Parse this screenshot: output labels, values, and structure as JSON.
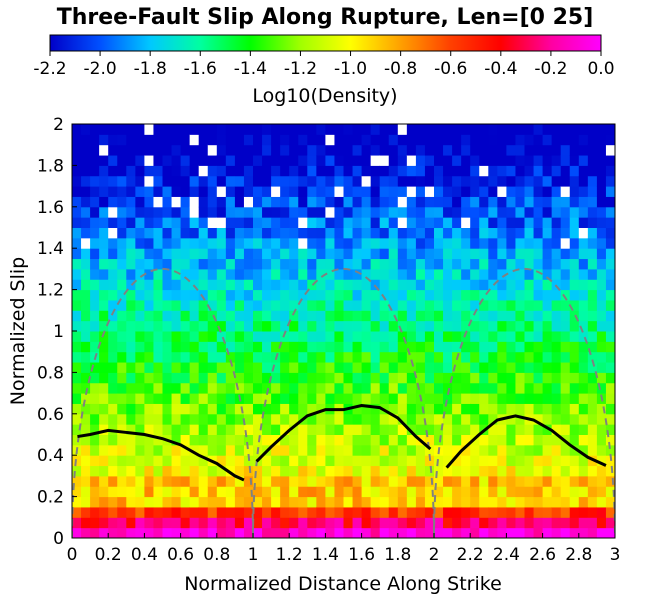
{
  "chart_data": {
    "type": "heatmap",
    "title": "Three-Fault Slip Along Rupture, Len=[0 25]",
    "xlabel": "Normalized Distance Along Strike",
    "ylabel": "Normalized Slip",
    "xlim": [
      0,
      3
    ],
    "ylim": [
      0,
      2
    ],
    "x_ticks": [
      "0",
      "0.2",
      "0.4",
      "0.6",
      "0.8",
      "1",
      "1.2",
      "1.4",
      "1.6",
      "1.8",
      "2",
      "2.2",
      "2.4",
      "2.6",
      "2.8",
      "3"
    ],
    "y_ticks": [
      "0",
      "0.2",
      "0.4",
      "0.6",
      "0.8",
      "1",
      "1.2",
      "1.4",
      "1.6",
      "1.8",
      "2"
    ],
    "colorbar": {
      "label": "Log10(Density)",
      "range": [
        -2.2,
        0.0
      ],
      "ticks": [
        "-2.2",
        "-2.0",
        "-1.8",
        "-1.6",
        "-1.4",
        "-1.2",
        "-1.0",
        "-0.8",
        "-0.6",
        "-0.4",
        "-0.2",
        "0.0"
      ],
      "colormap": [
        "#0000c8",
        "#0050ff",
        "#00c8ff",
        "#00ffa0",
        "#00ff00",
        "#a0ff00",
        "#ffff00",
        "#ffa000",
        "#ff4000",
        "#ff0000",
        "#ff00a0",
        "#ff00ff"
      ],
      "placement": "top"
    },
    "grid": false,
    "x_bins": 60,
    "y_bins": 40,
    "series": [
      {
        "style": "solid-black",
        "segments": [
          {
            "x": [
              0.03,
              0.1,
              0.2,
              0.3,
              0.4,
              0.5,
              0.6,
              0.7,
              0.8,
              0.9,
              0.95
            ],
            "y": [
              0.49,
              0.5,
              0.52,
              0.51,
              0.5,
              0.48,
              0.45,
              0.4,
              0.36,
              0.3,
              0.28
            ]
          },
          {
            "x": [
              1.02,
              1.1,
              1.2,
              1.3,
              1.4,
              1.5,
              1.6,
              1.7,
              1.8,
              1.9,
              1.98
            ],
            "y": [
              0.37,
              0.44,
              0.52,
              0.59,
              0.62,
              0.62,
              0.64,
              0.63,
              0.58,
              0.49,
              0.43
            ]
          },
          {
            "x": [
              2.07,
              2.15,
              2.25,
              2.35,
              2.45,
              2.55,
              2.65,
              2.75,
              2.85,
              2.95
            ],
            "y": [
              0.34,
              0.42,
              0.5,
              0.57,
              0.59,
              0.57,
              0.52,
              0.45,
              0.39,
              0.35
            ]
          }
        ]
      },
      {
        "style": "dashed-gray",
        "shape": "elliptical",
        "segments": [
          {
            "x0": 0,
            "x1": 1,
            "ymax": 1.3
          },
          {
            "x0": 1,
            "x1": 2,
            "ymax": 1.3
          },
          {
            "x0": 2,
            "x1": 3,
            "ymax": 1.3
          }
        ]
      }
    ]
  }
}
